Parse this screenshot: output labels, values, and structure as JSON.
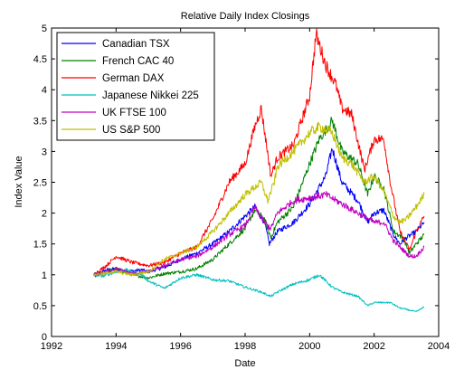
{
  "chart_data": {
    "type": "line",
    "title": "Relative Daily Index Closings",
    "xlabel": "Date",
    "ylabel": "Index Value",
    "xlim": [
      1992,
      2004
    ],
    "ylim": [
      0,
      5
    ],
    "xticks": [
      1992,
      1994,
      1996,
      1998,
      2000,
      2002,
      2004
    ],
    "yticks": [
      0,
      0.5,
      1,
      1.5,
      2,
      2.5,
      3,
      3.5,
      4,
      4.5,
      5
    ],
    "xtick_labels": [
      "1992",
      "1994",
      "1996",
      "1998",
      "2000",
      "2002",
      "2004"
    ],
    "ytick_labels": [
      "0",
      "0.5",
      "1",
      "1.5",
      "2",
      "2.5",
      "3",
      "3.5",
      "4",
      "4.5",
      "5"
    ],
    "grid": false,
    "legend_position": "top-left",
    "series": [
      {
        "name": "Canadian TSX",
        "color": "#0000ff",
        "x": [
          1993.3,
          1993.7,
          1994.0,
          1994.3,
          1994.8,
          1995.0,
          1995.5,
          1996.0,
          1996.5,
          1997.0,
          1997.5,
          1997.9,
          1998.3,
          1998.6,
          1998.75,
          1999.0,
          1999.5,
          2000.0,
          2000.5,
          2000.7,
          2001.0,
          2001.5,
          2001.8,
          2002.0,
          2002.3,
          2002.6,
          2002.8,
          2003.0,
          2003.3,
          2003.55
        ],
        "values": [
          1.0,
          1.08,
          1.1,
          1.05,
          1.08,
          1.05,
          1.12,
          1.25,
          1.35,
          1.5,
          1.7,
          1.9,
          2.1,
          1.85,
          1.5,
          1.7,
          1.85,
          2.15,
          2.6,
          3.05,
          2.5,
          2.2,
          1.85,
          2.0,
          2.05,
          1.65,
          1.5,
          1.6,
          1.7,
          1.85
        ]
      },
      {
        "name": "French CAC 40",
        "color": "#008000",
        "x": [
          1993.3,
          1993.7,
          1994.0,
          1994.5,
          1995.0,
          1995.5,
          1996.0,
          1996.5,
          1997.0,
          1997.5,
          1998.0,
          1998.3,
          1998.6,
          1998.8,
          1999.0,
          1999.5,
          2000.0,
          2000.3,
          2000.7,
          2001.0,
          2001.5,
          2001.8,
          2002.0,
          2002.3,
          2002.6,
          2002.9,
          2003.1,
          2003.3,
          2003.55
        ],
        "values": [
          0.97,
          1.05,
          1.1,
          1.0,
          0.95,
          1.02,
          1.05,
          1.1,
          1.25,
          1.5,
          1.75,
          2.05,
          1.9,
          1.6,
          1.85,
          2.1,
          2.8,
          3.2,
          3.5,
          3.0,
          2.8,
          2.3,
          2.6,
          2.4,
          1.7,
          1.6,
          1.35,
          1.5,
          1.65
        ]
      },
      {
        "name": "German DAX",
        "color": "#ff0000",
        "x": [
          1993.3,
          1993.7,
          1994.0,
          1994.5,
          1995.0,
          1995.5,
          1996.0,
          1996.5,
          1997.0,
          1997.5,
          1998.0,
          1998.3,
          1998.5,
          1998.8,
          1999.0,
          1999.5,
          2000.0,
          2000.2,
          2000.5,
          2000.8,
          2001.0,
          2001.3,
          2001.7,
          2002.0,
          2002.3,
          2002.5,
          2002.8,
          2003.1,
          2003.3,
          2003.55
        ],
        "values": [
          1.0,
          1.15,
          1.3,
          1.2,
          1.15,
          1.2,
          1.35,
          1.45,
          1.9,
          2.5,
          2.8,
          3.4,
          3.7,
          2.6,
          2.9,
          3.1,
          3.9,
          4.9,
          4.4,
          4.1,
          3.7,
          3.6,
          2.7,
          3.2,
          3.2,
          2.5,
          1.7,
          1.4,
          1.7,
          1.95
        ]
      },
      {
        "name": "Japanese Nikkei 225",
        "color": "#00bfbf",
        "x": [
          1993.3,
          1993.6,
          1994.0,
          1994.3,
          1994.8,
          1995.0,
          1995.5,
          1996.0,
          1996.5,
          1997.0,
          1997.5,
          1998.0,
          1998.5,
          1998.8,
          1999.0,
          1999.5,
          2000.0,
          2000.3,
          2000.7,
          2001.0,
          2001.5,
          2001.8,
          2002.0,
          2002.5,
          2002.8,
          2003.0,
          2003.3,
          2003.55
        ],
        "values": [
          1.0,
          0.98,
          1.05,
          1.08,
          1.0,
          0.9,
          0.78,
          0.95,
          1.0,
          0.92,
          0.9,
          0.8,
          0.72,
          0.65,
          0.72,
          0.85,
          0.92,
          1.0,
          0.8,
          0.72,
          0.65,
          0.5,
          0.55,
          0.55,
          0.46,
          0.44,
          0.4,
          0.48
        ]
      },
      {
        "name": "UK FTSE 100",
        "color": "#bf00bf",
        "x": [
          1993.3,
          1993.7,
          1994.0,
          1994.5,
          1995.0,
          1995.5,
          1996.0,
          1996.5,
          1997.0,
          1997.5,
          1998.0,
          1998.3,
          1998.6,
          1998.8,
          1999.0,
          1999.5,
          2000.0,
          2000.5,
          2001.0,
          2001.5,
          2002.0,
          2002.3,
          2002.6,
          2002.9,
          2003.1,
          2003.3,
          2003.55
        ],
        "values": [
          1.0,
          1.05,
          1.1,
          1.02,
          1.05,
          1.15,
          1.25,
          1.3,
          1.45,
          1.65,
          1.8,
          2.1,
          1.85,
          1.75,
          2.0,
          2.2,
          2.25,
          2.3,
          2.15,
          2.0,
          1.85,
          1.85,
          1.55,
          1.4,
          1.3,
          1.3,
          1.45
        ]
      },
      {
        "name": "US S&P 500",
        "color": "#bfbf00",
        "x": [
          1993.3,
          1993.7,
          1994.0,
          1994.5,
          1995.0,
          1995.5,
          1996.0,
          1996.5,
          1997.0,
          1997.5,
          1998.0,
          1998.5,
          1998.7,
          1998.9,
          1999.0,
          1999.5,
          2000.0,
          2000.3,
          2000.7,
          2001.0,
          2001.3,
          2001.7,
          2002.0,
          2002.3,
          2002.6,
          2002.8,
          2003.0,
          2003.3,
          2003.55
        ],
        "values": [
          1.0,
          1.03,
          1.05,
          1.0,
          1.05,
          1.25,
          1.35,
          1.45,
          1.7,
          2.0,
          2.3,
          2.5,
          2.2,
          2.5,
          2.75,
          3.0,
          3.3,
          3.4,
          3.3,
          2.9,
          2.8,
          2.5,
          2.6,
          2.35,
          1.95,
          1.85,
          1.9,
          2.1,
          2.3
        ]
      }
    ]
  }
}
